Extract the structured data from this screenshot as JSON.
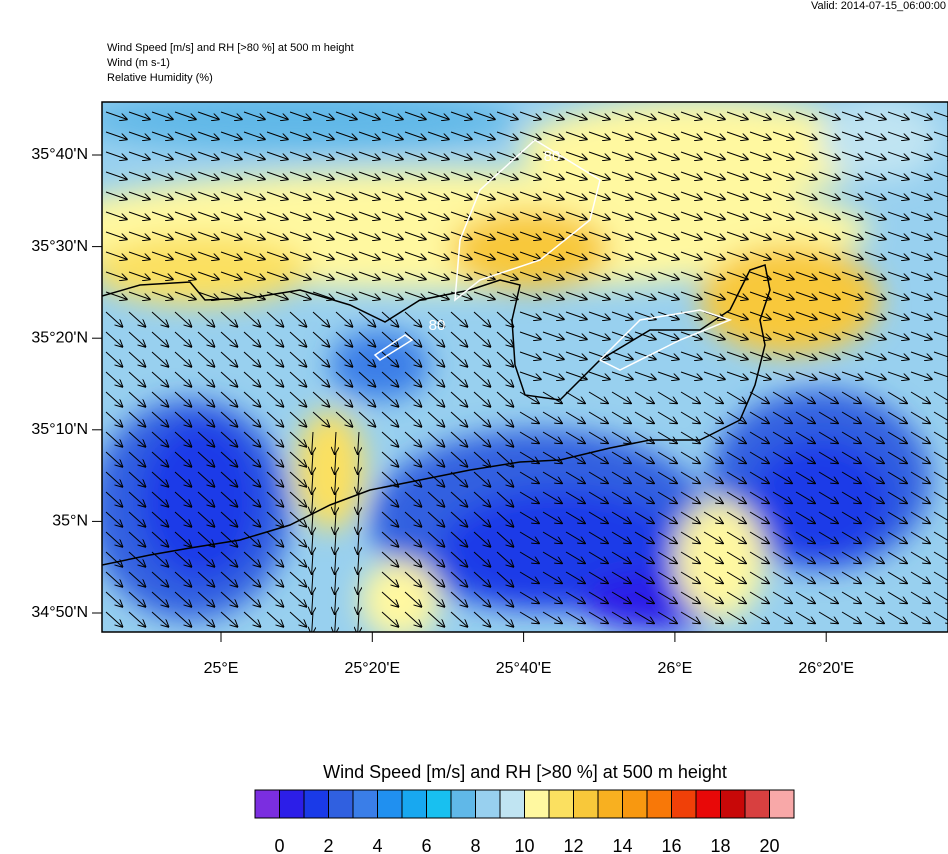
{
  "valid": "Valid: 2014-07-15_06:00:00",
  "header": {
    "title": "Wind Speed [m/s] and RH [>80 %] at 500 m height",
    "line2": "Wind   (m s-1)",
    "line3": "Relative Humidity   (%)"
  },
  "map": {
    "lat_labels": [
      "35°40'N",
      "35°30'N",
      "35°20'N",
      "35°10'N",
      "35°N",
      "34°50'N"
    ],
    "lon_labels": [
      "25°E",
      "25°20'E",
      "25°40'E",
      "26°E",
      "26°20'E"
    ],
    "contour_labels": [
      "80",
      "80"
    ]
  },
  "colorbar": {
    "title": "Wind Speed [m/s] and RH [>80 %] at 500 m height",
    "range": [
      -1,
      21
    ],
    "ticks": [
      0,
      2,
      4,
      6,
      8,
      10,
      12,
      14,
      16,
      18,
      20
    ],
    "colors": [
      "#7b2ee0",
      "#2c1ee8",
      "#1a3ae8",
      "#3060e0",
      "#3a7ee8",
      "#2090f0",
      "#18a8f0",
      "#18c0f0",
      "#60b8e8",
      "#98d0ef",
      "#c0e4f2",
      "#fff8a0",
      "#fbe060",
      "#f8c83a",
      "#f8b020",
      "#f89810",
      "#f87808",
      "#f04008",
      "#e80808",
      "#c80808",
      "#d84040",
      "#f8a8a8"
    ]
  }
}
